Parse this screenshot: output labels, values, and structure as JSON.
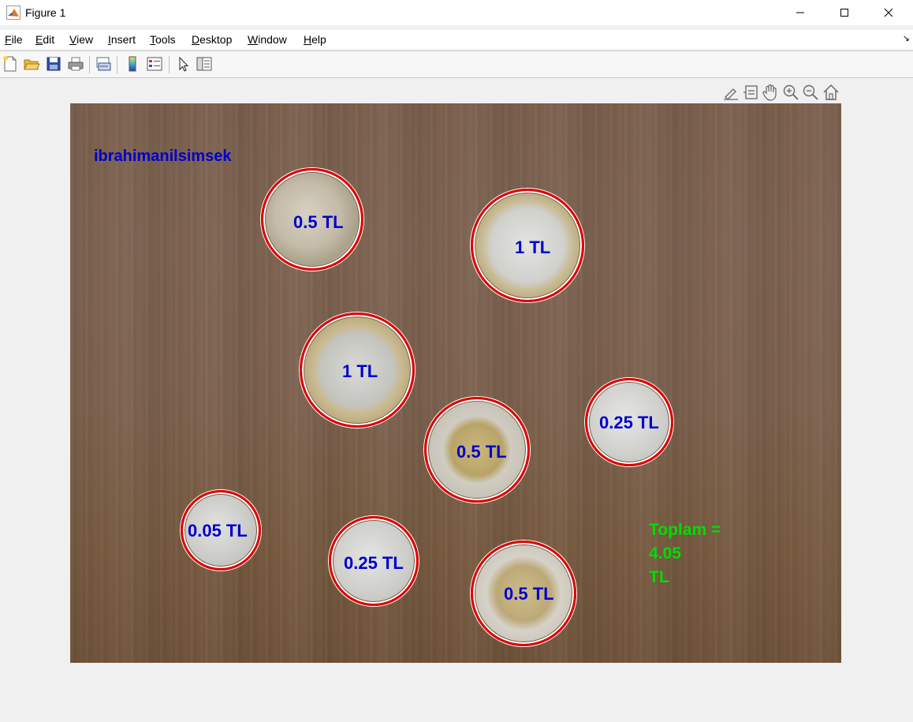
{
  "window": {
    "title": "Figure 1",
    "app_icon": "matlab-icon",
    "controls": [
      "minimize-icon",
      "maximize-icon",
      "close-icon"
    ]
  },
  "menubar": {
    "items": [
      {
        "label": "File",
        "accel": "F"
      },
      {
        "label": "Edit",
        "accel": "E"
      },
      {
        "label": "View",
        "accel": "V"
      },
      {
        "label": "Insert",
        "accel": "I"
      },
      {
        "label": "Tools",
        "accel": "T"
      },
      {
        "label": "Desktop",
        "accel": "D"
      },
      {
        "label": "Window",
        "accel": "W"
      },
      {
        "label": "Help",
        "accel": "H"
      }
    ],
    "dock_icon": "dock-arrow-icon",
    "dock_glyph": "↘"
  },
  "toolbar": {
    "buttons": [
      "new-figure-icon",
      "open-file-icon",
      "save-icon",
      "print-icon",
      "link-plot-icon",
      "insert-colorbar-icon",
      "insert-legend-icon",
      "edit-plot-icon",
      "property-inspector-icon"
    ]
  },
  "axes_toolbar": {
    "buttons": [
      "brush-icon",
      "data-tips-icon",
      "pan-hand-icon",
      "zoom-in-icon",
      "zoom-out-icon",
      "restore-view-icon"
    ]
  },
  "image": {
    "author": "ibrahimanilsimsek",
    "coins": [
      {
        "label": "0.5 TL"
      },
      {
        "label": "1 TL"
      },
      {
        "label": "1 TL"
      },
      {
        "label": "0.25 TL"
      },
      {
        "label": "0.5 TL"
      },
      {
        "label": "0.05 TL"
      },
      {
        "label": "0.25 TL"
      },
      {
        "label": "0.5 TL"
      }
    ],
    "total": {
      "line1": "Toplam =",
      "line2": "4.05",
      "line3": "TL"
    },
    "colors": {
      "ring": "#e00000",
      "label": "#0000cc",
      "total": "#00dd00"
    }
  }
}
